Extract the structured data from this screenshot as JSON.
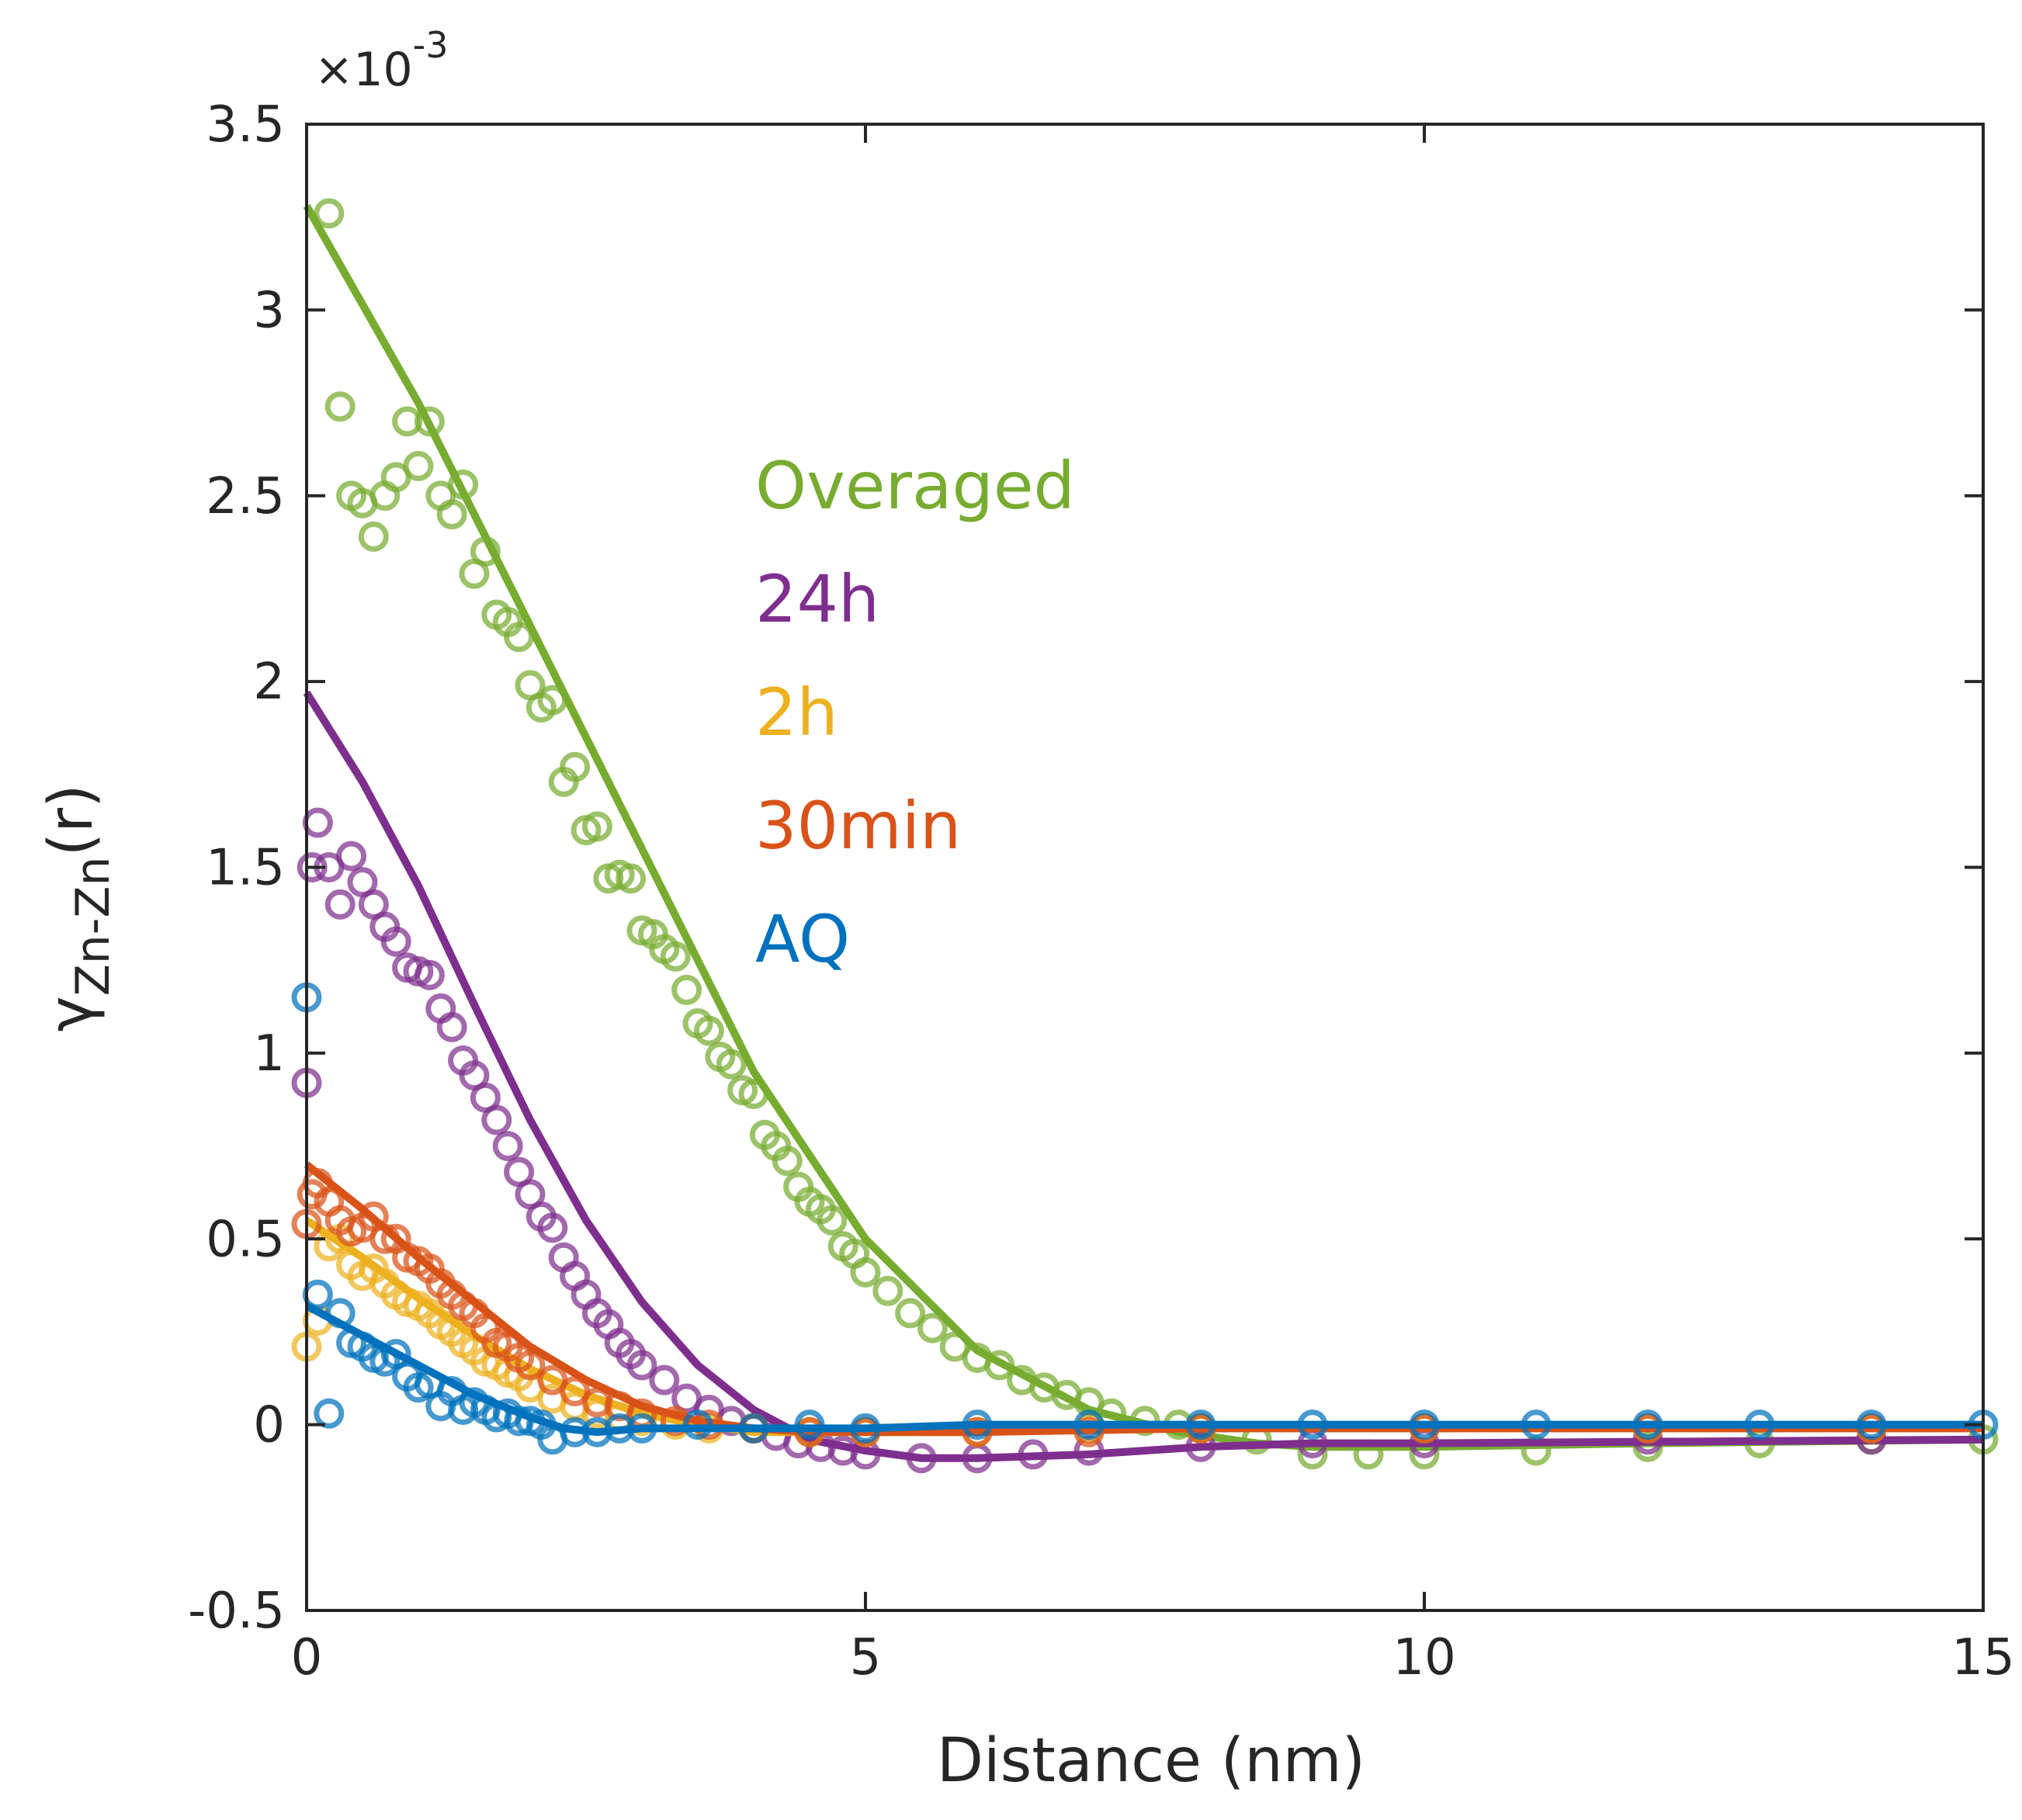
{
  "chart_data": {
    "type": "scatter",
    "title": "",
    "xlabel": "Distance (nm)",
    "ylabel_symbol": "γ",
    "ylabel_subscript": "Zn-Zn",
    "ylabel_suffix": "(r)",
    "y_multiplier": "×10",
    "y_multiplier_exponent": "-3",
    "xlim": [
      0,
      15
    ],
    "ylim": [
      -0.5,
      3.5
    ],
    "xticks": [
      0,
      5,
      10,
      15
    ],
    "xtick_labels": [
      "0",
      "5",
      "10",
      "15"
    ],
    "yticks": [
      -0.5,
      0,
      0.5,
      1,
      1.5,
      2,
      2.5,
      3,
      3.5
    ],
    "ytick_labels": [
      "-0.5",
      "0",
      "0.5",
      "1",
      "1.5",
      "2",
      "2.5",
      "3",
      "3.5"
    ],
    "grid": false,
    "legend_position": "center-left",
    "series": [
      {
        "name": "Overaged",
        "color": "#77AC30",
        "fit": {
          "x": [
            0,
            1,
            2,
            3,
            4,
            5,
            6,
            7,
            7.8,
            8.5,
            9,
            10,
            12,
            15
          ],
          "y": [
            3.28,
            2.75,
            2.15,
            1.55,
            0.95,
            0.5,
            0.2,
            0.04,
            -0.02,
            -0.05,
            -0.06,
            -0.06,
            -0.05,
            -0.04
          ]
        },
        "points": {
          "x": [
            0.2,
            0.3,
            0.4,
            0.5,
            0.6,
            0.7,
            0.8,
            0.9,
            1.0,
            1.1,
            1.2,
            1.3,
            1.4,
            1.5,
            1.6,
            1.7,
            1.8,
            1.9,
            2.0,
            2.1,
            2.2,
            2.3,
            2.4,
            2.5,
            2.6,
            2.7,
            2.8,
            2.9,
            3.0,
            3.1,
            3.2,
            3.3,
            3.4,
            3.5,
            3.6,
            3.7,
            3.8,
            3.9,
            4.0,
            4.1,
            4.2,
            4.3,
            4.4,
            4.5,
            4.6,
            4.7,
            4.8,
            4.9,
            5.0,
            5.2,
            5.4,
            5.6,
            5.8,
            6.0,
            6.2,
            6.4,
            6.6,
            6.8,
            7.0,
            7.2,
            7.5,
            7.8,
            8.0,
            8.5,
            9.0,
            9.5,
            10.0,
            11.0,
            12.0,
            13.0,
            14.0,
            15.0
          ],
          "y": [
            3.26,
            2.74,
            2.5,
            2.48,
            2.39,
            2.5,
            2.55,
            2.7,
            2.58,
            2.7,
            2.5,
            2.45,
            2.53,
            2.29,
            2.35,
            2.18,
            2.16,
            2.12,
            1.99,
            1.93,
            1.95,
            1.73,
            1.77,
            1.6,
            1.61,
            1.47,
            1.48,
            1.47,
            1.33,
            1.32,
            1.28,
            1.26,
            1.17,
            1.08,
            1.06,
            0.99,
            0.97,
            0.9,
            0.89,
            0.78,
            0.75,
            0.71,
            0.64,
            0.6,
            0.58,
            0.55,
            0.48,
            0.46,
            0.41,
            0.36,
            0.3,
            0.26,
            0.21,
            0.18,
            0.16,
            0.12,
            0.1,
            0.08,
            0.06,
            0.03,
            0.01,
            0.0,
            -0.01,
            -0.04,
            -0.08,
            -0.08,
            -0.08,
            -0.07,
            -0.06,
            -0.05,
            -0.04,
            -0.04
          ]
        }
      },
      {
        "name": "24h",
        "color": "#7E2F8E",
        "fit": {
          "x": [
            0,
            0.5,
            1,
            1.5,
            2,
            2.5,
            3,
            3.5,
            4,
            4.5,
            5,
            5.5,
            6,
            7,
            8,
            9,
            10,
            15
          ],
          "y": [
            1.97,
            1.73,
            1.45,
            1.13,
            0.82,
            0.55,
            0.33,
            0.16,
            0.04,
            -0.04,
            -0.07,
            -0.09,
            -0.09,
            -0.08,
            -0.06,
            -0.05,
            -0.05,
            -0.04
          ]
        },
        "points": {
          "x": [
            0.0,
            0.05,
            0.1,
            0.2,
            0.3,
            0.4,
            0.5,
            0.6,
            0.7,
            0.8,
            0.9,
            1.0,
            1.1,
            1.2,
            1.3,
            1.4,
            1.5,
            1.6,
            1.7,
            1.8,
            1.9,
            2.0,
            2.1,
            2.2,
            2.3,
            2.4,
            2.5,
            2.6,
            2.7,
            2.8,
            2.9,
            3.0,
            3.2,
            3.4,
            3.6,
            3.8,
            4.0,
            4.2,
            4.4,
            4.6,
            4.8,
            5.0,
            5.5,
            6.0,
            6.5,
            7.0,
            8.0,
            9.0,
            10.0,
            12.0,
            14.0
          ],
          "y": [
            0.92,
            1.5,
            1.62,
            1.5,
            1.4,
            1.53,
            1.46,
            1.4,
            1.34,
            1.3,
            1.23,
            1.22,
            1.21,
            1.12,
            1.07,
            0.98,
            0.94,
            0.88,
            0.82,
            0.75,
            0.68,
            0.62,
            0.56,
            0.53,
            0.45,
            0.4,
            0.35,
            0.3,
            0.27,
            0.22,
            0.19,
            0.16,
            0.12,
            0.07,
            0.04,
            0.01,
            -0.01,
            -0.03,
            -0.05,
            -0.06,
            -0.07,
            -0.08,
            -0.09,
            -0.09,
            -0.08,
            -0.07,
            -0.06,
            -0.05,
            -0.05,
            -0.04,
            -0.04
          ]
        }
      },
      {
        "name": "2h",
        "color": "#EDB120",
        "fit": {
          "x": [
            0,
            0.5,
            1,
            1.5,
            2,
            2.5,
            3,
            3.5,
            4,
            4.5,
            5,
            6,
            8,
            10,
            15
          ],
          "y": [
            0.55,
            0.45,
            0.34,
            0.24,
            0.15,
            0.08,
            0.03,
            0.0,
            -0.02,
            -0.02,
            -0.02,
            -0.02,
            -0.01,
            -0.01,
            -0.01
          ]
        },
        "points": {
          "x": [
            0.0,
            0.1,
            0.2,
            0.3,
            0.4,
            0.5,
            0.6,
            0.7,
            0.8,
            0.9,
            1.0,
            1.1,
            1.2,
            1.3,
            1.4,
            1.5,
            1.6,
            1.7,
            1.8,
            1.9,
            2.0,
            2.2,
            2.4,
            2.6,
            2.8,
            3.0,
            3.3,
            3.6,
            4.0,
            4.5,
            5.0,
            6.0,
            7.0,
            8.0,
            10.0,
            12.0,
            14.0
          ],
          "y": [
            0.21,
            0.28,
            0.48,
            0.5,
            0.43,
            0.4,
            0.42,
            0.38,
            0.35,
            0.33,
            0.32,
            0.3,
            0.27,
            0.25,
            0.22,
            0.2,
            0.17,
            0.16,
            0.14,
            0.13,
            0.1,
            0.07,
            0.05,
            0.03,
            0.02,
            0.01,
            0.0,
            -0.01,
            -0.01,
            -0.02,
            -0.02,
            -0.02,
            -0.01,
            -0.01,
            -0.01,
            -0.01,
            -0.01
          ]
        }
      },
      {
        "name": "30min",
        "color": "#D95319",
        "fit": {
          "x": [
            0,
            0.5,
            1,
            1.5,
            2,
            2.5,
            3,
            3.5,
            4,
            4.5,
            5,
            6,
            8,
            10,
            15
          ],
          "y": [
            0.7,
            0.58,
            0.45,
            0.33,
            0.21,
            0.12,
            0.05,
            0.01,
            -0.01,
            -0.02,
            -0.02,
            -0.02,
            -0.01,
            -0.01,
            -0.01
          ]
        },
        "points": {
          "x": [
            0.0,
            0.05,
            0.1,
            0.2,
            0.3,
            0.4,
            0.5,
            0.6,
            0.7,
            0.8,
            0.9,
            1.0,
            1.1,
            1.2,
            1.3,
            1.4,
            1.5,
            1.6,
            1.7,
            1.8,
            1.9,
            2.0,
            2.2,
            2.4,
            2.6,
            2.8,
            3.0,
            3.3,
            3.6,
            4.0,
            4.5,
            5.0,
            6.0,
            7.0,
            8.0,
            10.0,
            12.0,
            14.0
          ],
          "y": [
            0.54,
            0.62,
            0.65,
            0.6,
            0.55,
            0.52,
            0.53,
            0.56,
            0.5,
            0.5,
            0.45,
            0.44,
            0.42,
            0.38,
            0.35,
            0.32,
            0.3,
            0.26,
            0.22,
            0.21,
            0.18,
            0.16,
            0.12,
            0.09,
            0.06,
            0.05,
            0.03,
            0.01,
            0.0,
            -0.01,
            -0.02,
            -0.02,
            -0.02,
            -0.02,
            -0.01,
            -0.01,
            -0.01,
            -0.01
          ]
        }
      },
      {
        "name": "AQ",
        "color": "#0072BD",
        "fit": {
          "x": [
            0,
            0.5,
            1,
            1.5,
            2,
            2.3,
            2.6,
            3,
            4,
            5,
            6,
            8,
            10,
            15
          ],
          "y": [
            0.32,
            0.24,
            0.16,
            0.08,
            0.02,
            -0.01,
            -0.02,
            -0.01,
            -0.01,
            -0.01,
            0.0,
            0.0,
            0.0,
            0.0
          ]
        },
        "points": {
          "x": [
            0.0,
            0.1,
            0.2,
            0.3,
            0.4,
            0.5,
            0.6,
            0.7,
            0.8,
            0.9,
            1.0,
            1.1,
            1.2,
            1.3,
            1.4,
            1.5,
            1.6,
            1.7,
            1.8,
            1.9,
            2.0,
            2.1,
            2.2,
            2.4,
            2.6,
            2.8,
            3.0,
            3.5,
            4.0,
            4.5,
            5.0,
            6.0,
            7.0,
            8.0,
            9.0,
            10.0,
            11.0,
            12.0,
            13.0,
            14.0,
            15.0
          ],
          "y": [
            1.15,
            0.35,
            0.03,
            0.3,
            0.22,
            0.21,
            0.18,
            0.17,
            0.19,
            0.13,
            0.1,
            0.11,
            0.05,
            0.09,
            0.04,
            0.06,
            0.04,
            0.02,
            0.03,
            0.01,
            0.01,
            0.0,
            -0.04,
            -0.02,
            -0.02,
            -0.01,
            -0.01,
            0.0,
            -0.01,
            0.0,
            -0.01,
            0.0,
            0.0,
            0.0,
            0.0,
            0.0,
            0.0,
            0.0,
            0.0,
            0.0,
            0.0
          ]
        }
      }
    ]
  }
}
